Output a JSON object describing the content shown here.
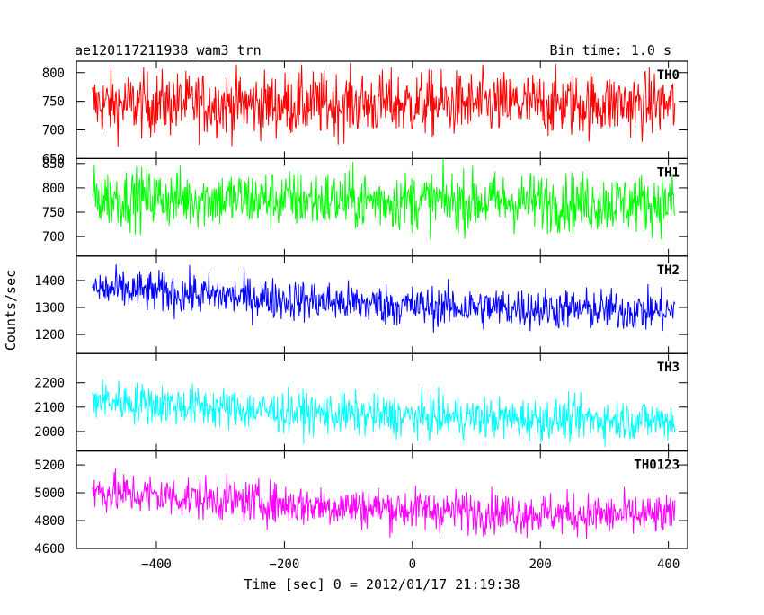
{
  "header": {
    "title": "ae120117211938_wam3_trn",
    "bin_time": "Bin time: 1.0 s"
  },
  "chart_data": {
    "type": "line",
    "title": "ae120117211938_wam3_trn",
    "subtitle": "Bin time: 1.0 s",
    "xlabel": "Time [sec] 0 = 2012/01/17 21:19:38",
    "ylabel": "Counts/sec",
    "xlim": [
      -525,
      430
    ],
    "x_range_data": [
      -500,
      410
    ],
    "x_ticks": [
      -400,
      -200,
      0,
      200,
      400
    ],
    "x_tick_labels": [
      "−400",
      "−200",
      "0",
      "200",
      "400"
    ],
    "grid": false,
    "legend": "none",
    "panels": [
      {
        "name": "TH0",
        "color": "#ff0000",
        "ylim": [
          650,
          820
        ],
        "y_ticks": [
          650,
          700,
          750,
          800
        ],
        "y_tick_labels": [
          "650",
          "700",
          "750",
          "800"
        ],
        "trend": [
          [
            -500,
            745
          ],
          [
            410,
            745
          ]
        ],
        "noise": 28
      },
      {
        "name": "TH1",
        "color": "#00ff00",
        "ylim": [
          660,
          860
        ],
        "y_ticks": [
          700,
          750,
          800,
          850
        ],
        "y_tick_labels": [
          "700",
          "750",
          "800",
          "850"
        ],
        "trend": [
          [
            -500,
            780
          ],
          [
            410,
            768
          ]
        ],
        "noise": 30
      },
      {
        "name": "TH2",
        "color": "#0000ff",
        "ylim": [
          1130,
          1490
        ],
        "y_ticks": [
          1200,
          1300,
          1400
        ],
        "y_tick_labels": [
          "1200",
          "1300",
          "1400"
        ],
        "trend": [
          [
            -500,
            1370
          ],
          [
            -200,
            1330
          ],
          [
            0,
            1305
          ],
          [
            410,
            1285
          ]
        ],
        "noise": 38
      },
      {
        "name": "TH3",
        "color": "#00ffff",
        "ylim": [
          1920,
          2320
        ],
        "y_ticks": [
          2000,
          2100,
          2200
        ],
        "y_tick_labels": [
          "2000",
          "2100",
          "2200"
        ],
        "trend": [
          [
            -500,
            2130
          ],
          [
            -200,
            2080
          ],
          [
            0,
            2060
          ],
          [
            410,
            2045
          ]
        ],
        "noise": 42
      },
      {
        "name": "TH0123",
        "color": "#ff00ff",
        "ylim": [
          4600,
          5300
        ],
        "y_ticks": [
          4600,
          4800,
          5000,
          5200
        ],
        "y_tick_labels": [
          "4600",
          "4800",
          "5000",
          "5200"
        ],
        "trend": [
          [
            -500,
            5010
          ],
          [
            -200,
            4920
          ],
          [
            0,
            4880
          ],
          [
            200,
            4850
          ],
          [
            410,
            4830
          ]
        ],
        "noise": 75
      }
    ]
  }
}
